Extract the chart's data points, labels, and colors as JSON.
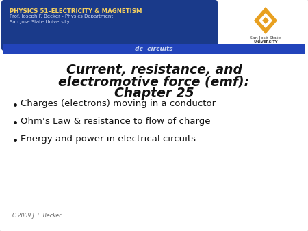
{
  "title_line1": "Current, resistance, and",
  "title_line2": "electromotive force (emf):",
  "title_line3": "Chapter 25",
  "bullets": [
    "Charges (electrons) moving in a conductor",
    "Ohm’s Law & resistance to flow of charge",
    "Energy and power in electrical circuits"
  ],
  "header_text_line1": "PHYSICS 51–ELECTRICITY & MAGNETISM",
  "header_text_line2": "Prof. Joseph F. Becker - Physics Department",
  "header_text_line3": "San Jose State University",
  "sub_banner": "dc  circuits",
  "footer": "C 2009 J. F. Becker",
  "bg_color": "#e8e8e4",
  "header_bg": "#1a3a8a",
  "sub_banner_bg": "#2244bb",
  "header_text_color1": "#f5d060",
  "header_text_color2": "#d0d8f0",
  "sub_banner_text": "#c8d4f0",
  "title_color": "#111111",
  "bullet_color": "#111111",
  "footer_color": "#666666",
  "logo_orange": "#e8a020",
  "sjsu_text_color": "#333333"
}
